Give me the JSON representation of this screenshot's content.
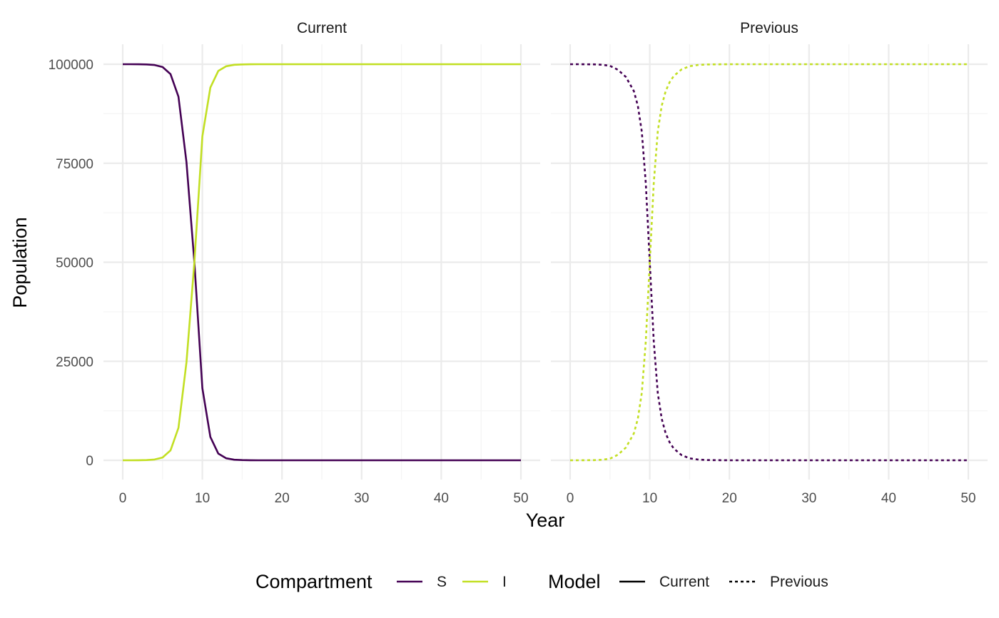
{
  "colors": {
    "S": "#440154",
    "I": "#c2df23",
    "grid_major": "#ebebeb",
    "grid_minor": "#f5f5f5"
  },
  "chart_data": {
    "type": "line",
    "xlabel": "Year",
    "ylabel": "Population",
    "xlim": [
      0,
      50
    ],
    "ylim": [
      0,
      100000
    ],
    "x_ticks": [
      0,
      10,
      20,
      30,
      40,
      50
    ],
    "y_ticks": [
      0,
      25000,
      50000,
      75000,
      100000
    ],
    "x_tick_labels": [
      "0",
      "10",
      "20",
      "30",
      "40",
      "50"
    ],
    "y_tick_labels": [
      "0",
      "25000",
      "50000",
      "75000",
      "100000"
    ],
    "grid": true,
    "panels": [
      {
        "title": "Current",
        "linetype": "solid",
        "x": [
          0,
          1,
          2,
          3,
          4,
          5,
          6,
          7,
          8,
          9,
          10,
          11,
          12,
          13,
          14,
          15,
          16,
          17,
          18,
          20,
          25,
          30,
          35,
          40,
          45,
          50
        ],
        "series": [
          {
            "name": "S",
            "values": [
              100000,
              99995,
              99980,
              99940,
              99800,
              99300,
              97500,
              91800,
              75300,
              50000,
              18200,
              5900,
              1700,
              500,
              150,
              50,
              15,
              5,
              0,
              0,
              0,
              0,
              0,
              0,
              0,
              0
            ]
          },
          {
            "name": "I",
            "values": [
              0,
              5,
              20,
              60,
              200,
              700,
              2500,
              8200,
              24700,
              50000,
              81800,
              94100,
              98300,
              99500,
              99850,
              99950,
              99985,
              99995,
              100000,
              100000,
              100000,
              100000,
              100000,
              100000,
              100000,
              100000
            ]
          }
        ]
      },
      {
        "title": "Previous",
        "linetype": "dashed",
        "x": [
          0,
          1,
          2,
          3,
          4,
          5,
          6,
          7,
          8,
          8.5,
          9,
          9.5,
          10,
          10.5,
          11,
          11.5,
          12,
          12.5,
          13,
          14,
          15,
          16,
          17,
          18,
          20,
          25,
          30,
          35,
          40,
          45,
          50
        ],
        "series": [
          {
            "name": "S",
            "values": [
              100000,
              99995,
              99985,
              99960,
              99880,
              99600,
              98600,
              96800,
              93200,
              89500,
              83000,
              70000,
              50000,
              30000,
              17000,
              10500,
              6800,
              4500,
              3000,
              1300,
              500,
              200,
              70,
              30,
              0,
              0,
              0,
              0,
              0,
              0,
              0
            ]
          },
          {
            "name": "I",
            "values": [
              0,
              5,
              15,
              40,
              120,
              400,
              1400,
              3200,
              6800,
              10500,
              17000,
              30000,
              50000,
              70000,
              83000,
              89500,
              93200,
              95500,
              97000,
              98700,
              99500,
              99800,
              99930,
              99970,
              100000,
              100000,
              100000,
              100000,
              100000,
              100000,
              100000
            ]
          }
        ]
      }
    ],
    "legend": {
      "position": "bottom",
      "groups": [
        {
          "title": "Compartment",
          "items": [
            {
              "label": "S",
              "color_key": "S",
              "dash": "solid"
            },
            {
              "label": "I",
              "color_key": "I",
              "dash": "solid"
            }
          ]
        },
        {
          "title": "Model",
          "items": [
            {
              "label": "Current",
              "color_key": "",
              "dash": "solid"
            },
            {
              "label": "Previous",
              "color_key": "",
              "dash": "dashed"
            }
          ]
        }
      ]
    }
  }
}
